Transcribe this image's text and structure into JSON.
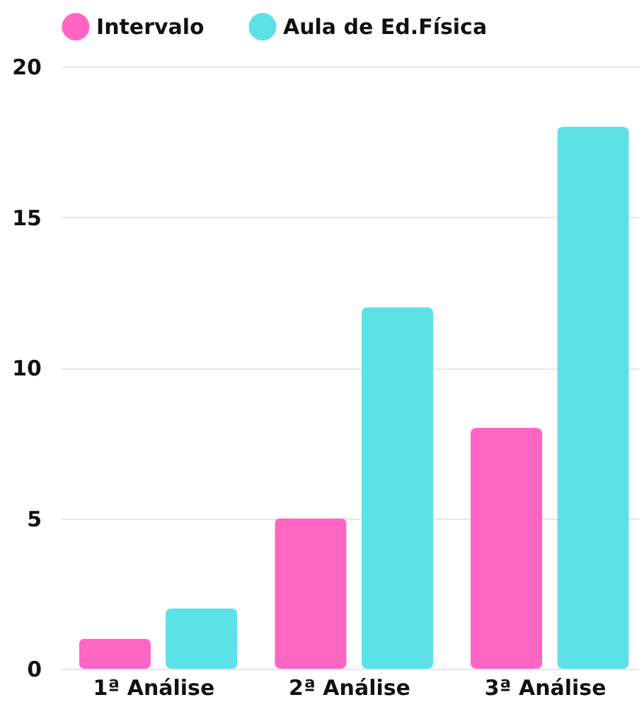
{
  "chart_data": {
    "type": "bar",
    "categories": [
      "1ª Análise",
      "2ª Análise",
      "3ª Análise"
    ],
    "series": [
      {
        "name": "Intervalo",
        "color": "#ff66c4",
        "values": [
          1,
          5,
          8
        ]
      },
      {
        "name": "Aula de Ed.Física",
        "color": "#5ce1e6",
        "values": [
          2,
          12,
          18
        ]
      }
    ],
    "ylim": [
      0,
      20
    ],
    "yticks": [
      0,
      5,
      10,
      15,
      20
    ],
    "grid": "y",
    "legend": "top"
  }
}
